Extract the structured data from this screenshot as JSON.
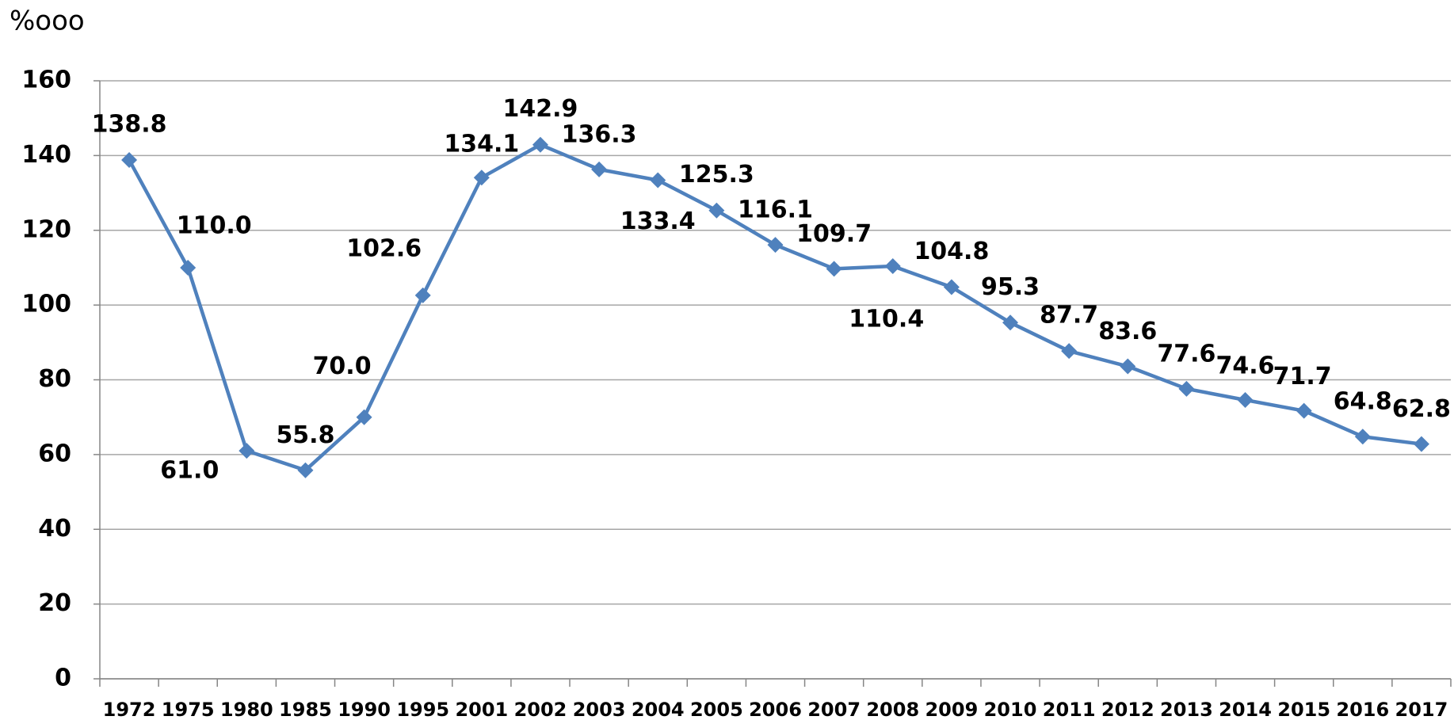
{
  "chart_data": {
    "type": "line",
    "y_label": "%ooo",
    "categories": [
      "1972",
      "1975",
      "1980",
      "1985",
      "1990",
      "1995",
      "2001",
      "2002",
      "2003",
      "2004",
      "2005",
      "2006",
      "2007",
      "2008",
      "2009",
      "2010",
      "2011",
      "2012",
      "2013",
      "2014",
      "2015",
      "2016",
      "2017"
    ],
    "values": [
      138.8,
      110,
      61,
      55.8,
      70,
      102.6,
      134.1,
      142.9,
      136.3,
      133.4,
      125.3,
      116.1,
      109.7,
      110.4,
      104.8,
      95.3,
      87.7,
      83.6,
      77.6,
      74.6,
      71.7,
      64.8,
      62.8
    ],
    "value_labels": [
      "138.8",
      "110.0",
      "61.0",
      "55.8",
      "70.0",
      "102.6",
      "134.1",
      "142.9",
      "136.3",
      "133.4",
      "125.3",
      "116.1",
      "109.7",
      "110.4",
      "104.8",
      "95.3",
      "87.7",
      "83.6",
      "77.6",
      "74.6",
      "71.7",
      "64.8",
      "62.8"
    ],
    "color": "#4f81bd",
    "ylim": [
      0,
      160
    ],
    "yticks": [
      0,
      20,
      40,
      60,
      80,
      100,
      120,
      140,
      160
    ],
    "grid": true
  }
}
